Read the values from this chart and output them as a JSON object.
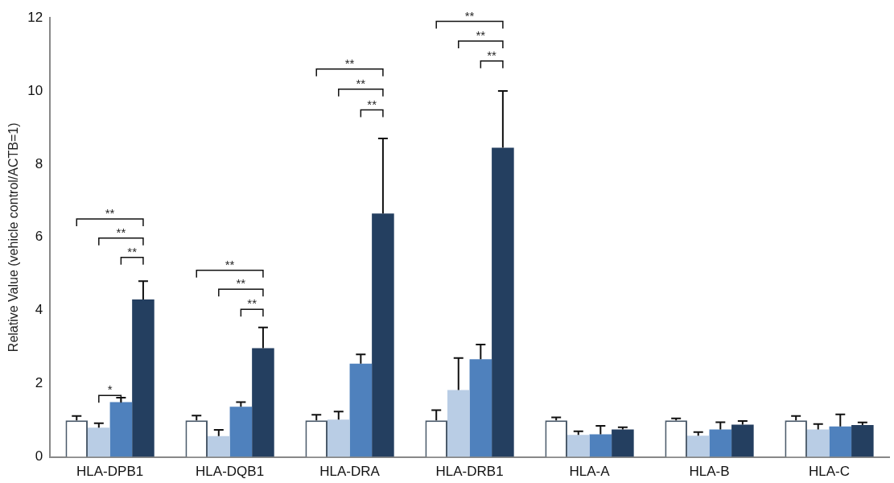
{
  "chart_data": {
    "type": "bar",
    "ylabel": "Relative Value (vehicle control/ACTB=1)",
    "categories": [
      "HLA-DPB1",
      "HLA-DQB1",
      "HLA-DRA",
      "HLA-DRB1",
      "HLA-A",
      "HLA-B",
      "HLA-C"
    ],
    "series": [
      {
        "color": "#ffffff",
        "values": [
          1.0,
          1.0,
          1.0,
          1.0,
          1.0,
          1.0,
          1.0
        ],
        "errors": [
          [
            1.0,
            1.12
          ],
          [
            1.0,
            1.13
          ],
          [
            1.0,
            1.15
          ],
          [
            1.0,
            1.28
          ],
          [
            1.0,
            1.08
          ],
          [
            1.0,
            1.05
          ],
          [
            1.0,
            1.12
          ]
        ]
      },
      {
        "color": "#b9cde5",
        "values": [
          0.8,
          0.57,
          1.02,
          1.83,
          0.6,
          0.58,
          0.75
        ],
        "errors": [
          [
            0.8,
            0.92
          ],
          [
            0.57,
            0.74
          ],
          [
            1.02,
            1.24
          ],
          [
            1.83,
            2.7
          ],
          [
            0.6,
            0.7
          ],
          [
            0.58,
            0.68
          ],
          [
            0.75,
            0.9
          ]
        ]
      },
      {
        "color": "#4f81bd",
        "values": [
          1.5,
          1.37,
          2.55,
          2.67,
          0.62,
          0.75,
          0.83
        ],
        "errors": [
          [
            1.5,
            1.62
          ],
          [
            1.37,
            1.5
          ],
          [
            2.55,
            2.8
          ],
          [
            2.67,
            3.07
          ],
          [
            0.62,
            0.85
          ],
          [
            0.75,
            0.95
          ],
          [
            0.83,
            1.16
          ]
        ]
      },
      {
        "color": "#243f60",
        "values": [
          4.3,
          2.97,
          6.65,
          8.45,
          0.75,
          0.88,
          0.87
        ],
        "errors": [
          [
            4.3,
            4.8
          ],
          [
            2.97,
            3.54
          ],
          [
            6.65,
            8.7
          ],
          [
            8.45,
            10.0
          ],
          [
            0.75,
            0.81
          ],
          [
            0.88,
            0.98
          ],
          [
            0.87,
            0.94
          ]
        ]
      }
    ],
    "ylim": [
      0,
      12
    ],
    "yticks": [
      0,
      2,
      4,
      6,
      8,
      10,
      12
    ],
    "grid": false,
    "legend": false,
    "annotations": [
      "*",
      "**",
      "**",
      "**",
      "**",
      "**",
      "**",
      "**",
      "**",
      "**",
      "**",
      "**",
      "**"
    ]
  }
}
